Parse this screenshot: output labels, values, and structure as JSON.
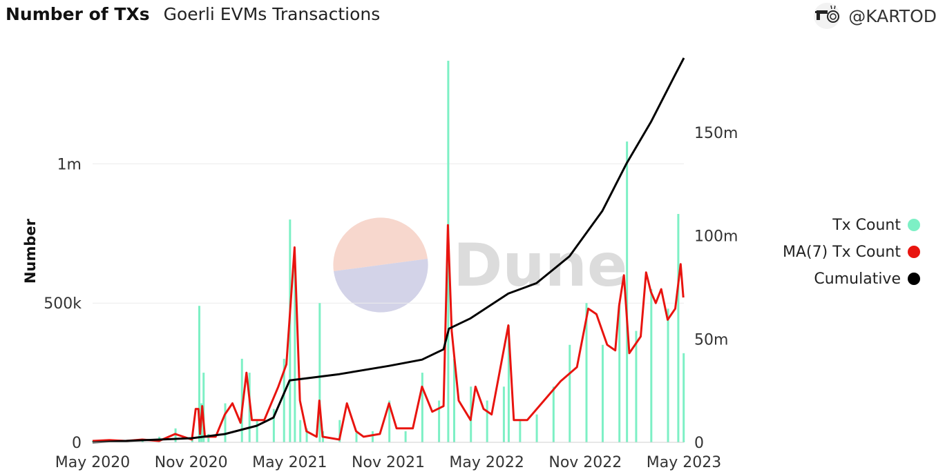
{
  "header": {
    "title": "Number of TXs",
    "subtitle": "Goerli EVMs Transactions"
  },
  "author": {
    "name": "@KARTOD",
    "avatar_icon": "pistol-snail-avatar-icon"
  },
  "watermark": {
    "text": "Dune",
    "colors": [
      "#f7d7cd",
      "#d3d3e8"
    ]
  },
  "chart_data": {
    "type": "bar+line",
    "title": "",
    "ylabel": "Number",
    "xlabel": "",
    "x_ticks": [
      "May 2020",
      "Nov 2020",
      "May 2021",
      "Nov 2021",
      "May 2022",
      "Nov 2022",
      "May 2023"
    ],
    "x_range": [
      "2020-05-01",
      "2023-05-01"
    ],
    "y_left": {
      "ticks": [
        0,
        500000,
        1000000
      ],
      "tick_labels": [
        "0",
        "500k",
        "1m"
      ],
      "range": [
        0,
        1380000
      ]
    },
    "y_right": {
      "ticks": [
        0,
        50000000,
        100000000,
        150000000
      ],
      "tick_labels": [
        "0",
        "50m",
        "100m",
        "150m"
      ],
      "range": [
        0,
        186000000
      ]
    },
    "grid": true,
    "legend_position": "right",
    "series": [
      {
        "name": "Tx Count",
        "type": "bar",
        "axis": "left",
        "color": "#7df0c5",
        "points": [
          [
            "2020-05-01",
            5000
          ],
          [
            "2020-06-01",
            8000
          ],
          [
            "2020-07-01",
            6000
          ],
          [
            "2020-08-01",
            12000
          ],
          [
            "2020-09-01",
            20000
          ],
          [
            "2020-10-01",
            50000
          ],
          [
            "2020-11-01",
            10000
          ],
          [
            "2020-11-14",
            490000
          ],
          [
            "2020-11-18",
            140000
          ],
          [
            "2020-11-22",
            250000
          ],
          [
            "2020-12-01",
            30000
          ],
          [
            "2021-01-01",
            140000
          ],
          [
            "2021-02-01",
            300000
          ],
          [
            "2021-02-15",
            250000
          ],
          [
            "2021-03-01",
            80000
          ],
          [
            "2021-04-01",
            120000
          ],
          [
            "2021-04-20",
            300000
          ],
          [
            "2021-05-01",
            800000
          ],
          [
            "2021-05-10",
            650000
          ],
          [
            "2021-05-20",
            80000
          ],
          [
            "2021-06-01",
            50000
          ],
          [
            "2021-06-25",
            500000
          ],
          [
            "2021-07-01",
            40000
          ],
          [
            "2021-08-01",
            80000
          ],
          [
            "2021-09-01",
            35000
          ],
          [
            "2021-10-01",
            40000
          ],
          [
            "2021-11-01",
            150000
          ],
          [
            "2021-12-01",
            40000
          ],
          [
            "2022-01-01",
            250000
          ],
          [
            "2022-02-01",
            150000
          ],
          [
            "2022-02-18",
            1370000
          ],
          [
            "2022-03-01",
            300000
          ],
          [
            "2022-04-01",
            200000
          ],
          [
            "2022-05-01",
            150000
          ],
          [
            "2022-06-01",
            200000
          ],
          [
            "2022-06-10",
            420000
          ],
          [
            "2022-07-01",
            80000
          ],
          [
            "2022-08-01",
            100000
          ],
          [
            "2022-09-01",
            200000
          ],
          [
            "2022-10-01",
            350000
          ],
          [
            "2022-11-01",
            500000
          ],
          [
            "2022-12-01",
            350000
          ],
          [
            "2023-01-01",
            500000
          ],
          [
            "2023-01-15",
            1080000
          ],
          [
            "2023-02-01",
            400000
          ],
          [
            "2023-03-01",
            550000
          ],
          [
            "2023-04-01",
            480000
          ],
          [
            "2023-04-20",
            820000
          ],
          [
            "2023-04-30",
            320000
          ]
        ]
      },
      {
        "name": "MA(7) Tx Count",
        "type": "line",
        "axis": "left",
        "color": "#e8140f",
        "points": [
          [
            "2020-05-01",
            5000
          ],
          [
            "2020-06-01",
            8000
          ],
          [
            "2020-07-01",
            5000
          ],
          [
            "2020-08-01",
            10000
          ],
          [
            "2020-09-01",
            5000
          ],
          [
            "2020-10-01",
            30000
          ],
          [
            "2020-11-01",
            10000
          ],
          [
            "2020-11-08",
            120000
          ],
          [
            "2020-11-13",
            120000
          ],
          [
            "2020-11-16",
            30000
          ],
          [
            "2020-11-20",
            130000
          ],
          [
            "2020-11-25",
            20000
          ],
          [
            "2020-12-15",
            20000
          ],
          [
            "2021-01-01",
            100000
          ],
          [
            "2021-01-15",
            140000
          ],
          [
            "2021-01-30",
            70000
          ],
          [
            "2021-02-10",
            250000
          ],
          [
            "2021-02-20",
            80000
          ],
          [
            "2021-03-15",
            80000
          ],
          [
            "2021-04-10",
            200000
          ],
          [
            "2021-04-25",
            280000
          ],
          [
            "2021-05-10",
            700000
          ],
          [
            "2021-05-20",
            150000
          ],
          [
            "2021-06-01",
            40000
          ],
          [
            "2021-06-20",
            20000
          ],
          [
            "2021-06-25",
            150000
          ],
          [
            "2021-07-01",
            20000
          ],
          [
            "2021-08-01",
            10000
          ],
          [
            "2021-08-15",
            140000
          ],
          [
            "2021-09-01",
            40000
          ],
          [
            "2021-09-15",
            20000
          ],
          [
            "2021-10-15",
            30000
          ],
          [
            "2021-11-01",
            140000
          ],
          [
            "2021-11-15",
            50000
          ],
          [
            "2021-12-15",
            50000
          ],
          [
            "2022-01-01",
            200000
          ],
          [
            "2022-01-20",
            110000
          ],
          [
            "2022-02-10",
            130000
          ],
          [
            "2022-02-18",
            780000
          ],
          [
            "2022-02-25",
            400000
          ],
          [
            "2022-03-10",
            150000
          ],
          [
            "2022-04-01",
            80000
          ],
          [
            "2022-04-10",
            200000
          ],
          [
            "2022-04-25",
            120000
          ],
          [
            "2022-05-10",
            100000
          ],
          [
            "2022-06-10",
            420000
          ],
          [
            "2022-06-20",
            80000
          ],
          [
            "2022-07-15",
            80000
          ],
          [
            "2022-08-15",
            150000
          ],
          [
            "2022-09-15",
            220000
          ],
          [
            "2022-10-15",
            270000
          ],
          [
            "2022-11-05",
            480000
          ],
          [
            "2022-11-20",
            460000
          ],
          [
            "2022-12-10",
            350000
          ],
          [
            "2022-12-25",
            330000
          ],
          [
            "2023-01-01",
            490000
          ],
          [
            "2023-01-10",
            600000
          ],
          [
            "2023-01-20",
            320000
          ],
          [
            "2023-02-10",
            380000
          ],
          [
            "2023-02-20",
            610000
          ],
          [
            "2023-03-01",
            540000
          ],
          [
            "2023-03-10",
            500000
          ],
          [
            "2023-03-20",
            550000
          ],
          [
            "2023-04-01",
            440000
          ],
          [
            "2023-04-15",
            480000
          ],
          [
            "2023-04-25",
            640000
          ],
          [
            "2023-04-30",
            520000
          ]
        ]
      },
      {
        "name": "Cumulative",
        "type": "line",
        "axis": "right",
        "color": "#000000",
        "points": [
          [
            "2020-05-01",
            0
          ],
          [
            "2020-08-01",
            1000000
          ],
          [
            "2020-11-01",
            2000000
          ],
          [
            "2021-01-01",
            4000000
          ],
          [
            "2021-03-01",
            8000000
          ],
          [
            "2021-04-01",
            12000000
          ],
          [
            "2021-05-01",
            30000000
          ],
          [
            "2021-06-01",
            31000000
          ],
          [
            "2021-08-01",
            33000000
          ],
          [
            "2021-11-01",
            37000000
          ],
          [
            "2022-01-01",
            40000000
          ],
          [
            "2022-02-10",
            45000000
          ],
          [
            "2022-02-20",
            55000000
          ],
          [
            "2022-04-01",
            60000000
          ],
          [
            "2022-06-10",
            72000000
          ],
          [
            "2022-08-01",
            77000000
          ],
          [
            "2022-10-01",
            90000000
          ],
          [
            "2022-12-01",
            112000000
          ],
          [
            "2023-01-15",
            135000000
          ],
          [
            "2023-03-01",
            155000000
          ],
          [
            "2023-04-15",
            178000000
          ],
          [
            "2023-05-01",
            186000000
          ]
        ]
      }
    ]
  },
  "legend": {
    "items": [
      {
        "label": "Tx Count",
        "color": "#7df0c5"
      },
      {
        "label": "MA(7) Tx Count",
        "color": "#e8140f"
      },
      {
        "label": "Cumulative",
        "color": "#000000"
      }
    ]
  }
}
